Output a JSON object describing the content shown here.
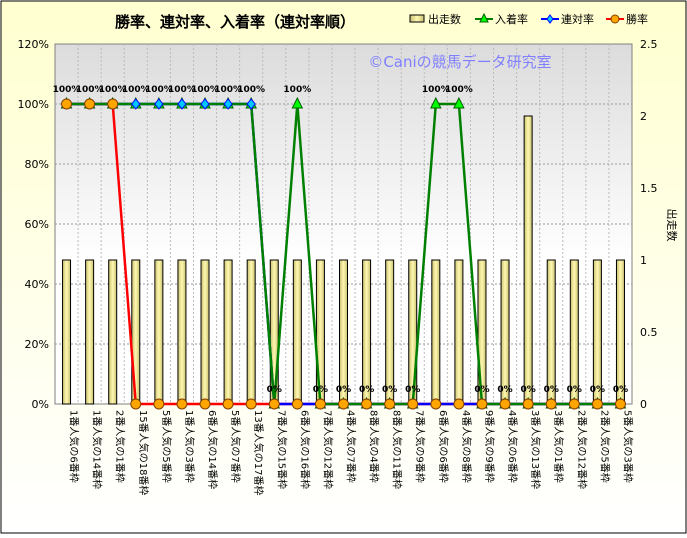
{
  "chart_data": {
    "type": "bar+line",
    "title": "勝率、連対率、入着率（連対率順）",
    "watermark": "©Caniの競馬データ研究室",
    "y_left": {
      "range": [
        0,
        120
      ],
      "ticks": [
        "0%",
        "20%",
        "40%",
        "60%",
        "80%",
        "100%",
        "120%"
      ]
    },
    "y_right": {
      "label": "出走数",
      "range": [
        0,
        2.5
      ],
      "ticks": [
        "0",
        "0.5",
        "1",
        "1.5",
        "2",
        "2.5"
      ]
    },
    "grid": true,
    "legend_position": "top-right",
    "categories": [
      "1番人気の6番枠",
      "1番人気の14番枠",
      "2番人気の1番枠",
      "15番人気の18番枠",
      "5番人気の5番枠",
      "1番人気の3番枠",
      "6番人気の14番枠",
      "5番人気の7番枠",
      "13番人気の17番枠",
      "7番人気の15番枠",
      "6番人気の16番枠",
      "7番人気の12番枠",
      "4番人気の7番枠",
      "8番人気の4番枠",
      "8番人気の11番枠",
      "7番人気の9番枠",
      "6番人気の6番枠",
      "4番人気の8番枠",
      "9番人気の9番枠",
      "4番人気の6番枠",
      "3番人気の13番枠",
      "3番人気の1番枠",
      "2番人気の12番枠",
      "2番人気の5番枠",
      "5番人気の3番枠"
    ],
    "series": [
      {
        "name": "出走数",
        "type": "bar",
        "axis": "right",
        "color": "#f0e68c",
        "values": [
          1,
          1,
          1,
          1,
          1,
          1,
          1,
          1,
          1,
          1,
          1,
          1,
          1,
          1,
          1,
          1,
          1,
          1,
          1,
          1,
          2,
          1,
          1,
          1,
          1
        ]
      },
      {
        "name": "入着率",
        "type": "line",
        "axis": "left",
        "color": "#008000",
        "values": [
          100,
          100,
          100,
          100,
          100,
          100,
          100,
          100,
          100,
          0,
          100,
          0,
          0,
          0,
          0,
          0,
          100,
          100,
          0,
          0,
          0,
          0,
          0,
          0,
          0
        ],
        "labels": [
          "100%",
          "100%",
          "100%",
          "100%",
          "100%",
          "100%",
          "100%",
          "100%",
          "100%",
          "0%",
          "100%",
          "0%",
          "0%",
          "0%",
          "0%",
          "0%",
          "100%",
          "100%",
          "0%",
          "0%",
          "0%",
          "0%",
          "0%",
          "0%",
          "0%"
        ]
      },
      {
        "name": "連対率",
        "type": "line",
        "axis": "left",
        "color": "#0000ff",
        "values": [
          100,
          100,
          100,
          100,
          100,
          100,
          100,
          100,
          100,
          0,
          0,
          0,
          0,
          0,
          0,
          0,
          0,
          0,
          0,
          0,
          0,
          0,
          0,
          0,
          0
        ]
      },
      {
        "name": "勝率",
        "type": "line",
        "axis": "left",
        "color": "#ff0000",
        "values": [
          100,
          100,
          100,
          0,
          0,
          0,
          0,
          0,
          0,
          0,
          0,
          0,
          0,
          0,
          0,
          0,
          0,
          0,
          0,
          0,
          0,
          0,
          0,
          0,
          0
        ]
      }
    ]
  }
}
